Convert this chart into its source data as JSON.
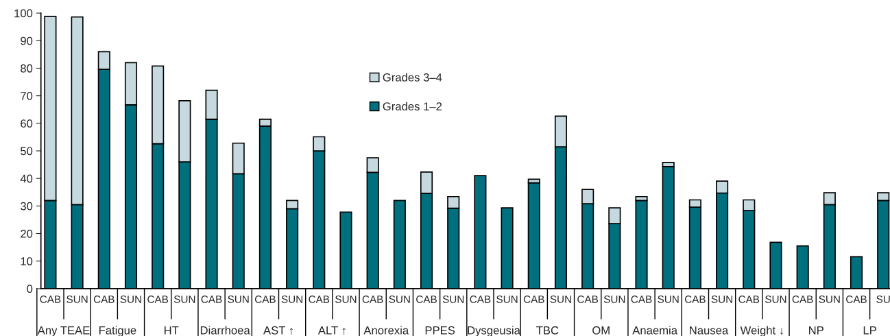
{
  "chart_data": {
    "type": "bar",
    "stacked": true,
    "categories": [
      "CAB",
      "SUN",
      "CAB",
      "SUN",
      "CAB",
      "SUN",
      "CAB",
      "SUN",
      "CAB",
      "SUN",
      "CAB",
      "SUN",
      "CAB",
      "SUN",
      "CAB",
      "SUN",
      "CAB",
      "SUN",
      "CAB",
      "SUN",
      "CAB",
      "SUN",
      "CAB",
      "SUN",
      "CAB",
      "SUN",
      "CAB",
      "SUN",
      "CAB",
      "SUN",
      "CAB",
      "SU"
    ],
    "series": [
      {
        "name": "Grades 1–2",
        "color": "#00707f",
        "values": [
          32,
          30.5,
          79.6,
          66.7,
          52.6,
          46,
          61.5,
          41.7,
          59,
          29,
          50,
          27.8,
          42.2,
          32,
          34.6,
          29.2,
          41,
          29.3,
          38.4,
          51.5,
          30.8,
          23.6,
          32,
          44.3,
          29.6,
          34.7,
          28.3,
          16.8,
          15.5,
          30.5,
          11.6,
          32
        ]
      },
      {
        "name": "Grades 3–4",
        "color": "#c5d9de",
        "values": [
          66.8,
          68.1,
          6.4,
          15.3,
          28.2,
          22.2,
          10.5,
          11.1,
          2.5,
          3,
          5.1,
          null,
          5.3,
          null,
          7.7,
          4.2,
          null,
          null,
          1.3,
          11.1,
          5.2,
          5.7,
          1.4,
          1.5,
          2.6,
          4.3,
          3.9,
          null,
          null,
          4.3,
          null,
          2.8
        ]
      }
    ],
    "annotations": [
      "Any TEAE",
      "Fatigue",
      "HT",
      "Diarrhoea",
      "AST ↑",
      "ALT ↑",
      "Anorexia",
      "PPES",
      "Dysgeusia",
      "TBC",
      "OM",
      "Anaemia",
      "Nausea",
      "Weight ↓",
      "NP",
      "LP"
    ],
    "ylim": [
      0,
      100
    ],
    "yticks": [
      0,
      10,
      20,
      30,
      40,
      50,
      60,
      70,
      80,
      90,
      100
    ],
    "legend": "top",
    "grid": false
  }
}
